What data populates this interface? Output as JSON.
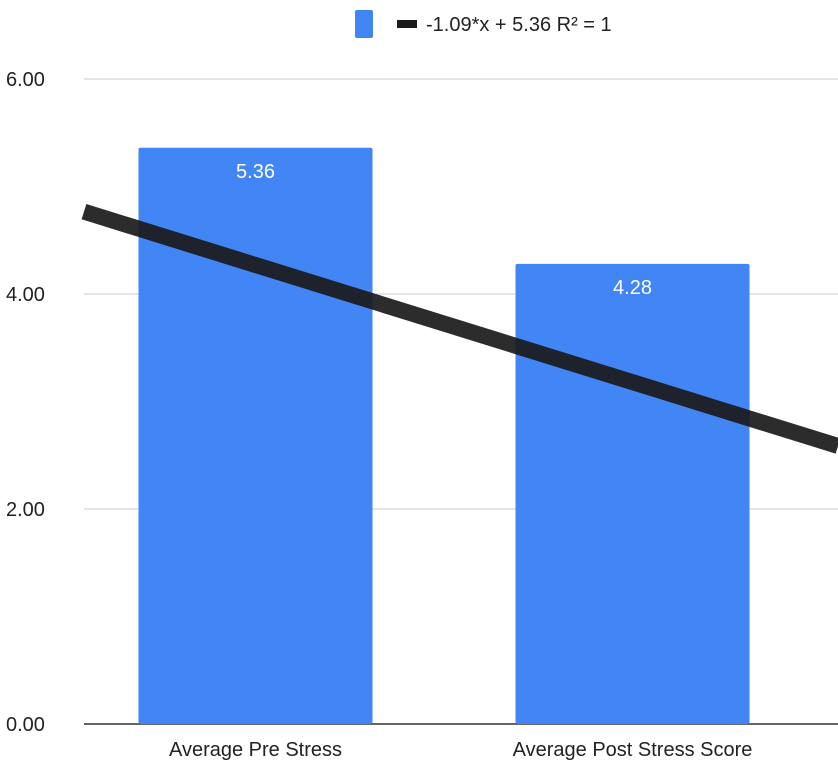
{
  "chart_data": {
    "type": "bar",
    "categories": [
      "Average Pre Stress",
      "Average Post Stress Score"
    ],
    "values": [
      5.36,
      4.28
    ],
    "data_labels": [
      "5.36",
      "4.28"
    ],
    "ylim": [
      0,
      6
    ],
    "y_ticks": [
      "0.00",
      "2.00",
      "4.00",
      "6.00"
    ],
    "grid": true,
    "legend_position": "top",
    "trendline": {
      "label": "-1.09*x + 5.36 R² = 1",
      "slope": -1.09,
      "intercept": 5.36
    },
    "colors": {
      "bar": "#4285f4",
      "trendline": "#1a1a1a",
      "grid": "#cccccc",
      "axis": "#333333"
    }
  }
}
